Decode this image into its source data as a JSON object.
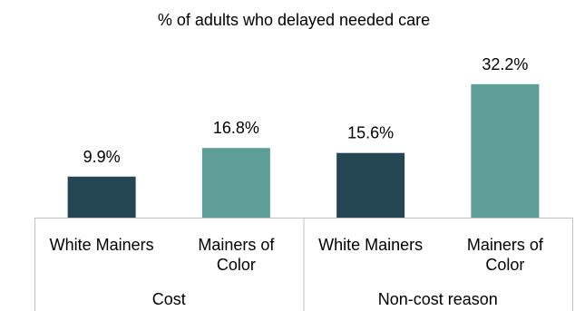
{
  "chart_data": {
    "type": "bar",
    "title": "% of adults who delayed needed care",
    "groups": [
      {
        "label": "Cost",
        "bars": [
          {
            "category": "White Mainers",
            "value": 9.9,
            "label": "9.9%",
            "color": "#254653"
          },
          {
            "category": "Mainers of Color",
            "value": 16.8,
            "label": "16.8%",
            "color": "#5d9e99"
          }
        ]
      },
      {
        "label": "Non-cost reason",
        "bars": [
          {
            "category": "White Mainers",
            "value": 15.6,
            "label": "15.6%",
            "color": "#254653"
          },
          {
            "category": "Mainers of Color",
            "value": 32.2,
            "label": "32.2%",
            "color": "#5d9e99"
          }
        ]
      }
    ],
    "ylim": [
      0,
      33
    ],
    "grid": false,
    "legend": "none"
  }
}
